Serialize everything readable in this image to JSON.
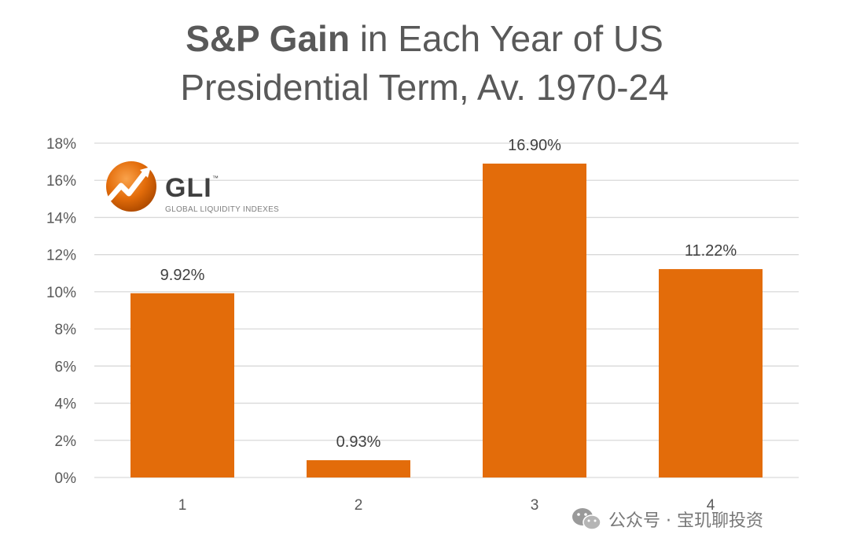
{
  "chart_data": {
    "type": "bar",
    "title_bold": "S&P Gain",
    "title_rest_line1": " in Each Year of US",
    "title_line2": "Presidential Term, Av. 1970-24",
    "categories": [
      "1",
      "2",
      "3",
      "4"
    ],
    "values": [
      9.92,
      0.93,
      16.9,
      11.22
    ],
    "data_labels": [
      "9.92%",
      "0.93%",
      "16.90%",
      "11.22%"
    ],
    "ylim": [
      0,
      18
    ],
    "yticks": [
      0,
      2,
      4,
      6,
      8,
      10,
      12,
      14,
      16,
      18
    ],
    "ytick_labels": [
      "0%",
      "2%",
      "4%",
      "6%",
      "8%",
      "10%",
      "12%",
      "14%",
      "16%",
      "18%"
    ],
    "xlabel": "",
    "ylabel": "",
    "grid": true,
    "bar_color": "#e36c0a"
  },
  "logo": {
    "name": "GLI",
    "tm": "™",
    "subtitle": "GLOBAL LIQUIDITY INDEXES",
    "icon": "rising-arrow-sphere-icon",
    "color": "#e36c0a"
  },
  "watermark": {
    "icon": "wechat-icon",
    "text": "公众号 · 宝玑聊投资"
  }
}
